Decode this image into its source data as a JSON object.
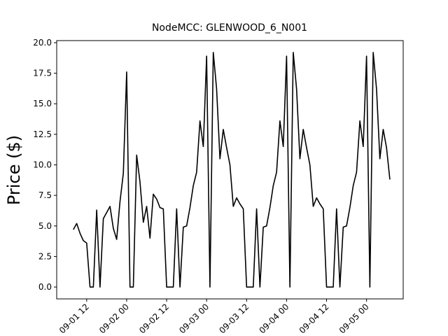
{
  "chart_data": {
    "type": "line",
    "title": "NodeMCC: GLENWOOD_6_N001",
    "y_label": "Price ($)",
    "x": [
      "09-01 08",
      "09-01 09",
      "09-01 10",
      "09-01 11",
      "09-01 12",
      "09-01 13",
      "09-01 14",
      "09-01 15",
      "09-01 16",
      "09-01 17",
      "09-01 18",
      "09-01 19",
      "09-01 20",
      "09-01 21",
      "09-01 22",
      "09-01 23",
      "09-02 00",
      "09-02 01",
      "09-02 02",
      "09-02 03",
      "09-02 04",
      "09-02 05",
      "09-02 06",
      "09-02 07",
      "09-02 08",
      "09-02 09",
      "09-02 10",
      "09-02 11",
      "09-02 12",
      "09-02 13",
      "09-02 14",
      "09-02 15",
      "09-02 16",
      "09-02 17",
      "09-02 18",
      "09-02 19",
      "09-02 20",
      "09-02 21",
      "09-02 22",
      "09-02 23",
      "09-03 00",
      "09-03 01",
      "09-03 02",
      "09-03 03",
      "09-03 04",
      "09-03 05",
      "09-03 06",
      "09-03 07",
      "09-03 08",
      "09-03 09",
      "09-03 10",
      "09-03 11",
      "09-03 12",
      "09-03 13",
      "09-03 14",
      "09-03 15",
      "09-03 16",
      "09-03 17",
      "09-03 18",
      "09-03 19",
      "09-03 20",
      "09-03 21",
      "09-03 22",
      "09-03 23",
      "09-04 00",
      "09-04 01",
      "09-04 02",
      "09-04 03",
      "09-04 04",
      "09-04 05",
      "09-04 06",
      "09-04 07",
      "09-04 08",
      "09-04 09",
      "09-04 10",
      "09-04 11",
      "09-04 12",
      "09-04 13",
      "09-04 14",
      "09-04 15",
      "09-04 16",
      "09-04 17",
      "09-04 18",
      "09-04 19",
      "09-04 20",
      "09-04 21",
      "09-04 22",
      "09-04 23",
      "09-05 00",
      "09-05 01",
      "09-05 02",
      "09-05 03",
      "09-05 04",
      "09-05 05",
      "09-05 06",
      "09-05 07"
    ],
    "series": [
      {
        "name": "GLENWOOD_6_N001",
        "color": "#000000",
        "values": [
          4.7,
          5.2,
          4.4,
          3.8,
          3.6,
          0,
          0,
          6.3,
          0,
          5.6,
          6.1,
          6.6,
          4.8,
          3.9,
          7.0,
          9.3,
          17.6,
          0,
          0,
          10.8,
          8.6,
          5.3,
          6.6,
          4.0,
          7.6,
          7.2,
          6.5,
          6.4,
          0,
          0,
          0,
          6.4,
          0,
          4.9,
          5.0,
          6.5,
          8.3,
          9.4,
          13.6,
          11.5,
          18.9,
          0,
          19.2,
          16.2,
          10.5,
          12.9,
          11.4,
          10.0,
          6.6,
          7.3,
          6.8,
          6.4,
          0,
          0,
          0,
          6.4,
          0,
          4.9,
          5.0,
          6.5,
          8.3,
          9.4,
          13.6,
          11.5,
          18.9,
          0,
          19.2,
          16.2,
          10.5,
          12.9,
          11.4,
          10.0,
          6.6,
          7.3,
          6.8,
          6.4,
          0,
          0,
          0,
          6.4,
          0,
          4.9,
          5.0,
          6.5,
          8.3,
          9.4,
          13.6,
          11.5,
          18.9,
          0,
          19.2,
          16.2,
          10.5,
          12.9,
          11.4,
          8.8
        ]
      }
    ],
    "xlim": [
      "09-01 03",
      "09-05 11"
    ],
    "xticks": [
      "09-01 12",
      "09-02 00",
      "09-02 12",
      "09-03 00",
      "09-03 12",
      "09-04 00",
      "09-04 12",
      "09-05 00"
    ],
    "ylim": [
      -0.97,
      20.17
    ],
    "yticks": [
      {
        "value": 0,
        "label": "0.0"
      },
      {
        "value": 2.5,
        "label": "2.5"
      },
      {
        "value": 5,
        "label": "5.0"
      },
      {
        "value": 7.5,
        "label": "7.5"
      },
      {
        "value": 10,
        "label": "10.0"
      },
      {
        "value": 12.5,
        "label": "12.5"
      },
      {
        "value": 15,
        "label": "15.0"
      },
      {
        "value": 17.5,
        "label": "17.5"
      },
      {
        "value": 20,
        "label": "20.0"
      }
    ]
  }
}
